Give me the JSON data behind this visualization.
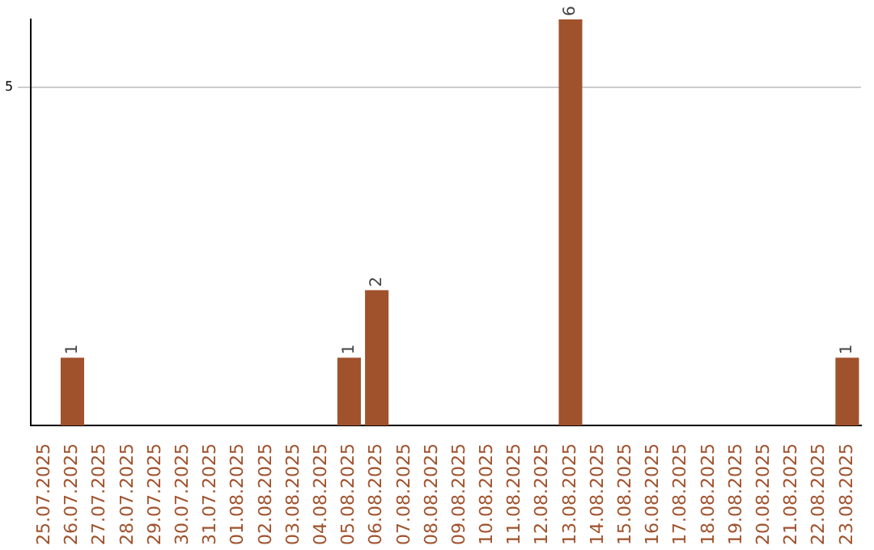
{
  "chart_data": {
    "type": "bar",
    "categories": [
      "25.07.2025",
      "26.07.2025",
      "27.07.2025",
      "28.07.2025",
      "29.07.2025",
      "30.07.2025",
      "31.07.2025",
      "01.08.2025",
      "02.08.2025",
      "03.08.2025",
      "04.08.2025",
      "05.08.2025",
      "06.08.2025",
      "07.08.2025",
      "08.08.2025",
      "09.08.2025",
      "10.08.2025",
      "11.08.2025",
      "12.08.2025",
      "13.08.2025",
      "14.08.2025",
      "15.08.2025",
      "16.08.2025",
      "17.08.2025",
      "18.08.2025",
      "19.08.2025",
      "20.08.2025",
      "21.08.2025",
      "22.08.2025",
      "23.08.2025"
    ],
    "values": [
      0,
      1,
      0,
      0,
      0,
      0,
      0,
      0,
      0,
      0,
      0,
      1,
      2,
      0,
      0,
      0,
      0,
      0,
      0,
      6,
      0,
      0,
      0,
      0,
      0,
      0,
      0,
      0,
      0,
      1
    ],
    "value_labels": [
      null,
      "1",
      null,
      null,
      null,
      null,
      null,
      null,
      null,
      null,
      null,
      "1",
      "2",
      null,
      null,
      null,
      null,
      null,
      null,
      "6",
      null,
      null,
      null,
      null,
      null,
      null,
      null,
      null,
      null,
      "1"
    ],
    "color": "#a0522d",
    "ylim": [
      0,
      6
    ],
    "yticks": [
      5
    ],
    "grid": "y"
  }
}
